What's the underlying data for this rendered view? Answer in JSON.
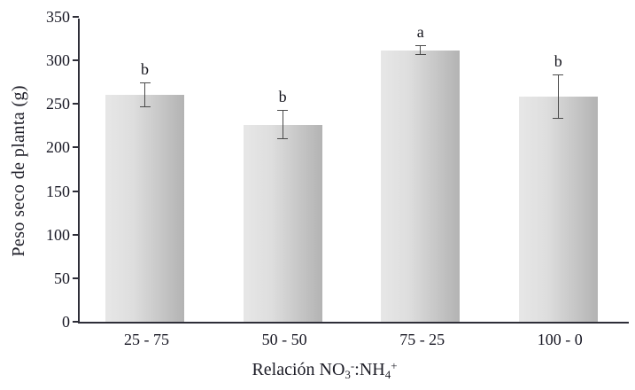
{
  "chart_data": {
    "type": "bar",
    "title": "",
    "categories": [
      "25 - 75",
      "50 - 50",
      "75 - 25",
      "100 - 0"
    ],
    "values": [
      260,
      226,
      311,
      258
    ],
    "error_bars": [
      14,
      16,
      5,
      25
    ],
    "sig_letters": [
      "b",
      "b",
      "a",
      "b"
    ],
    "ylabel": "Peso seco de planta (g)",
    "xlabel": "Relación NO3-:NH4+",
    "xlabel_parts": {
      "prefix": "Relación NO",
      "sub1": "3",
      "sup1": "-",
      "mid": ":NH",
      "sub2": "4",
      "sup2": "+"
    },
    "ylim": [
      0,
      350
    ],
    "ytick_step": 50,
    "ytick_labels": [
      "0",
      "50",
      "100",
      "150",
      "200",
      "250",
      "300",
      "350"
    ],
    "grid": false,
    "legend": null,
    "colors": {
      "bar_gradient_left": "#e7e7e7",
      "bar_gradient_right": "#b3b3b3",
      "axis": "#2e2e38",
      "error_bar": "#4a4a4a",
      "text": "#1c1c26",
      "background": "#ffffff"
    }
  }
}
